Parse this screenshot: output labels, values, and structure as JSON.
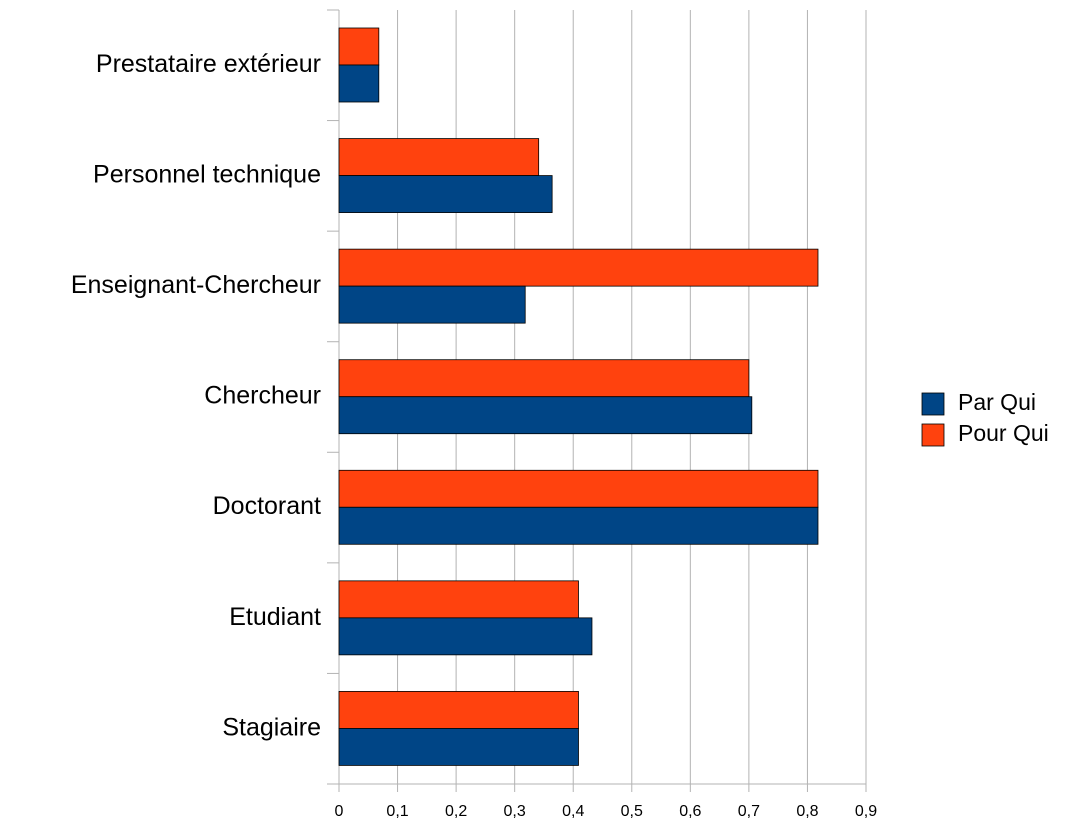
{
  "chart_data": {
    "type": "bar",
    "orientation": "horizontal",
    "categories": [
      "Prestataire extérieur",
      "Personnel technique",
      "Enseignant-Chercheur",
      "Chercheur",
      "Doctorant",
      "Etudiant",
      "Stagiaire"
    ],
    "series": [
      {
        "name": "Par Qui",
        "color": "#004586",
        "values": [
          0.068,
          0.364,
          0.318,
          0.705,
          0.818,
          0.432,
          0.409
        ]
      },
      {
        "name": "Pour Qui",
        "color": "#ff420e",
        "values": [
          0.068,
          0.341,
          0.818,
          0.7,
          0.818,
          0.409,
          0.409
        ]
      }
    ],
    "xlim": [
      0,
      0.9
    ],
    "xticks": [
      0,
      {
        "value": 0.1,
        "label": "0,1"
      },
      {
        "value": 0.2,
        "label": "0,2"
      },
      {
        "value": 0.3,
        "label": "0,3"
      },
      {
        "value": 0.4,
        "label": "0,4"
      },
      {
        "value": 0.5,
        "label": "0,5"
      },
      {
        "value": 0.6,
        "label": "0,6"
      },
      {
        "value": 0.7,
        "label": "0,7"
      },
      {
        "value": 0.8,
        "label": "0,8"
      },
      {
        "value": 0.9,
        "label": "0,9"
      }
    ],
    "grid": true,
    "legend": "right"
  }
}
